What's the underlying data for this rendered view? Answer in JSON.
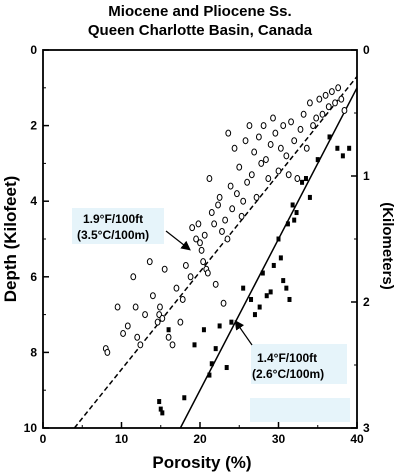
{
  "chart_data": {
    "type": "scatter",
    "title": "Miocene and Pliocene Ss.",
    "subtitle": "Queen Charlotte Basin, Canada",
    "xlabel": "Porosity (%)",
    "ylabel": "Depth (Kilofeet)",
    "ylabel_right": "(Kilometers)",
    "xlim": [
      0,
      40
    ],
    "ylim": [
      0,
      10
    ],
    "y_inverted": true,
    "y2lim": [
      0,
      3
    ],
    "x_ticks": [
      "0",
      "10",
      "20",
      "30",
      "40"
    ],
    "y_ticks": [
      "0",
      "2",
      "4",
      "6",
      "8",
      "10"
    ],
    "y2_ticks": [
      "0",
      "1",
      "2",
      "3"
    ],
    "grid": false,
    "legend": "none",
    "series": [
      {
        "marker": "open-circle",
        "points": [
          [
            8.0,
            7.9
          ],
          [
            8.2,
            8.0
          ],
          [
            9.5,
            6.8
          ],
          [
            10.2,
            7.5
          ],
          [
            10.8,
            7.3
          ],
          [
            11.5,
            6.0
          ],
          [
            11.8,
            6.8
          ],
          [
            12.0,
            7.6
          ],
          [
            12.4,
            7.8
          ],
          [
            13.0,
            7.0
          ],
          [
            13.6,
            5.6
          ],
          [
            14.0,
            6.5
          ],
          [
            14.6,
            7.2
          ],
          [
            14.8,
            7.0
          ],
          [
            14.9,
            6.8
          ],
          [
            15.2,
            7.1
          ],
          [
            15.5,
            5.8
          ],
          [
            16.0,
            7.6
          ],
          [
            16.5,
            7.8
          ],
          [
            17.0,
            6.3
          ],
          [
            17.5,
            7.2
          ],
          [
            17.8,
            6.6
          ],
          [
            18.2,
            5.7
          ],
          [
            18.8,
            6.0
          ],
          [
            19.0,
            4.7
          ],
          [
            19.5,
            5.0
          ],
          [
            19.8,
            4.6
          ],
          [
            20.0,
            5.1
          ],
          [
            20.2,
            5.3
          ],
          [
            20.4,
            5.6
          ],
          [
            20.6,
            4.9
          ],
          [
            20.8,
            5.8
          ],
          [
            21.0,
            5.9
          ],
          [
            21.2,
            3.4
          ],
          [
            21.5,
            4.3
          ],
          [
            21.8,
            4.6
          ],
          [
            22.0,
            6.2
          ],
          [
            22.3,
            4.1
          ],
          [
            22.5,
            3.9
          ],
          [
            22.8,
            4.8
          ],
          [
            23.0,
            6.7
          ],
          [
            23.2,
            4.5
          ],
          [
            23.5,
            5.0
          ],
          [
            23.6,
            2.2
          ],
          [
            23.9,
            3.6
          ],
          [
            24.1,
            4.2
          ],
          [
            24.4,
            2.6
          ],
          [
            24.7,
            3.8
          ],
          [
            25.0,
            3.1
          ],
          [
            25.3,
            4.4
          ],
          [
            25.5,
            4.0
          ],
          [
            25.8,
            2.4
          ],
          [
            26.0,
            3.5
          ],
          [
            26.3,
            2.0
          ],
          [
            26.6,
            3.3
          ],
          [
            26.9,
            2.7
          ],
          [
            27.2,
            3.9
          ],
          [
            27.5,
            2.3
          ],
          [
            27.8,
            3.0
          ],
          [
            28.1,
            2.0
          ],
          [
            28.4,
            2.9
          ],
          [
            28.7,
            3.4
          ],
          [
            29.0,
            2.5
          ],
          [
            29.3,
            1.8
          ],
          [
            29.6,
            2.2
          ],
          [
            30.0,
            3.2
          ],
          [
            30.3,
            2.6
          ],
          [
            30.6,
            2.0
          ],
          [
            31.0,
            2.8
          ],
          [
            31.3,
            3.3
          ],
          [
            31.6,
            1.9
          ],
          [
            32.0,
            2.4
          ],
          [
            32.4,
            3.4
          ],
          [
            32.8,
            2.1
          ],
          [
            33.2,
            1.7
          ],
          [
            33.6,
            2.6
          ],
          [
            34.0,
            1.4
          ],
          [
            34.4,
            2.0
          ],
          [
            34.8,
            1.8
          ],
          [
            35.2,
            1.3
          ],
          [
            35.6,
            1.7
          ],
          [
            36.0,
            1.2
          ],
          [
            36.4,
            1.5
          ],
          [
            36.8,
            1.1
          ],
          [
            37.2,
            1.4
          ],
          [
            37.6,
            1.0
          ],
          [
            38.0,
            1.3
          ],
          [
            38.4,
            1.6
          ]
        ]
      },
      {
        "marker": "filled-square",
        "points": [
          [
            14.8,
            9.3
          ],
          [
            15.0,
            9.5
          ],
          [
            15.2,
            9.6
          ],
          [
            16.0,
            7.4
          ],
          [
            18.0,
            9.2
          ],
          [
            19.3,
            7.8
          ],
          [
            20.5,
            7.4
          ],
          [
            21.2,
            8.6
          ],
          [
            21.5,
            8.3
          ],
          [
            22.0,
            7.9
          ],
          [
            22.5,
            7.3
          ],
          [
            23.4,
            8.4
          ],
          [
            24.0,
            7.2
          ],
          [
            25.5,
            6.3
          ],
          [
            26.5,
            6.6
          ],
          [
            27.0,
            7.0
          ],
          [
            27.6,
            6.8
          ],
          [
            28.0,
            5.9
          ],
          [
            28.5,
            6.5
          ],
          [
            29.0,
            6.4
          ],
          [
            29.4,
            5.7
          ],
          [
            30.0,
            5.0
          ],
          [
            30.3,
            5.5
          ],
          [
            30.6,
            6.1
          ],
          [
            31.0,
            6.3
          ],
          [
            31.2,
            4.6
          ],
          [
            31.4,
            6.6
          ],
          [
            31.8,
            4.1
          ],
          [
            32.0,
            4.5
          ],
          [
            32.3,
            4.3
          ],
          [
            33.0,
            3.5
          ],
          [
            33.5,
            3.4
          ],
          [
            34.0,
            3.9
          ],
          [
            35.0,
            2.9
          ],
          [
            36.5,
            2.3
          ],
          [
            37.5,
            2.6
          ],
          [
            38.2,
            2.8
          ],
          [
            39.0,
            2.6
          ]
        ]
      }
    ],
    "lines": [
      {
        "style": "dashed",
        "x": [
          4.0,
          40.0
        ],
        "y": [
          10.0,
          0.7
        ]
      },
      {
        "style": "solid",
        "x": [
          17.5,
          40.0
        ],
        "y": [
          10.0,
          1.0
        ]
      }
    ],
    "annotations": [
      {
        "lines": [
          "1.9°F/100ft",
          "(3.5°C/100m)"
        ]
      },
      {
        "lines": [
          "1.4°F/100ft",
          "(2.6°C/100m)"
        ]
      }
    ]
  }
}
